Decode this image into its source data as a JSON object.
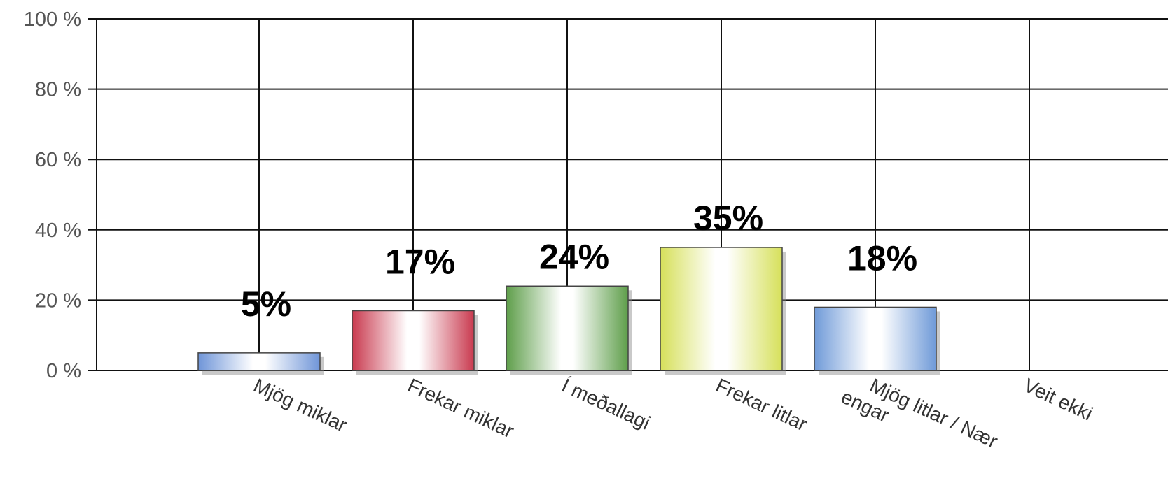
{
  "chart_data": {
    "type": "bar",
    "categories": [
      "Mjög miklar",
      "Frekar miklar",
      "Í meðallagi",
      "Frekar litlar",
      "Mjög litlar / Nær engar",
      "Veit ekki"
    ],
    "category_label_lines": [
      [
        "Mjög miklar"
      ],
      [
        "Frekar miklar"
      ],
      [
        "Í meðallagi"
      ],
      [
        "Frekar litlar"
      ],
      [
        "Mjög litlar / Nær",
        "engar"
      ],
      [
        "Veit ekki"
      ]
    ],
    "values": [
      5,
      17,
      24,
      35,
      18,
      0
    ],
    "data_labels": [
      "5%",
      "17%",
      "24%",
      "35%",
      "18%",
      ""
    ],
    "yticks": [
      "0 %",
      "20 %",
      "40 %",
      "60 %",
      "80 %",
      "100 %"
    ],
    "ytick_values": [
      0,
      20,
      40,
      60,
      80,
      100
    ],
    "ylim": [
      0,
      100
    ],
    "grid": true,
    "bar_colors": [
      "#6f95d8",
      "#c93a4f",
      "#5e9e4a",
      "#d6e05a",
      "#6f9ad8",
      "#bbbbbb"
    ],
    "title": "",
    "xlabel": "",
    "ylabel": ""
  }
}
